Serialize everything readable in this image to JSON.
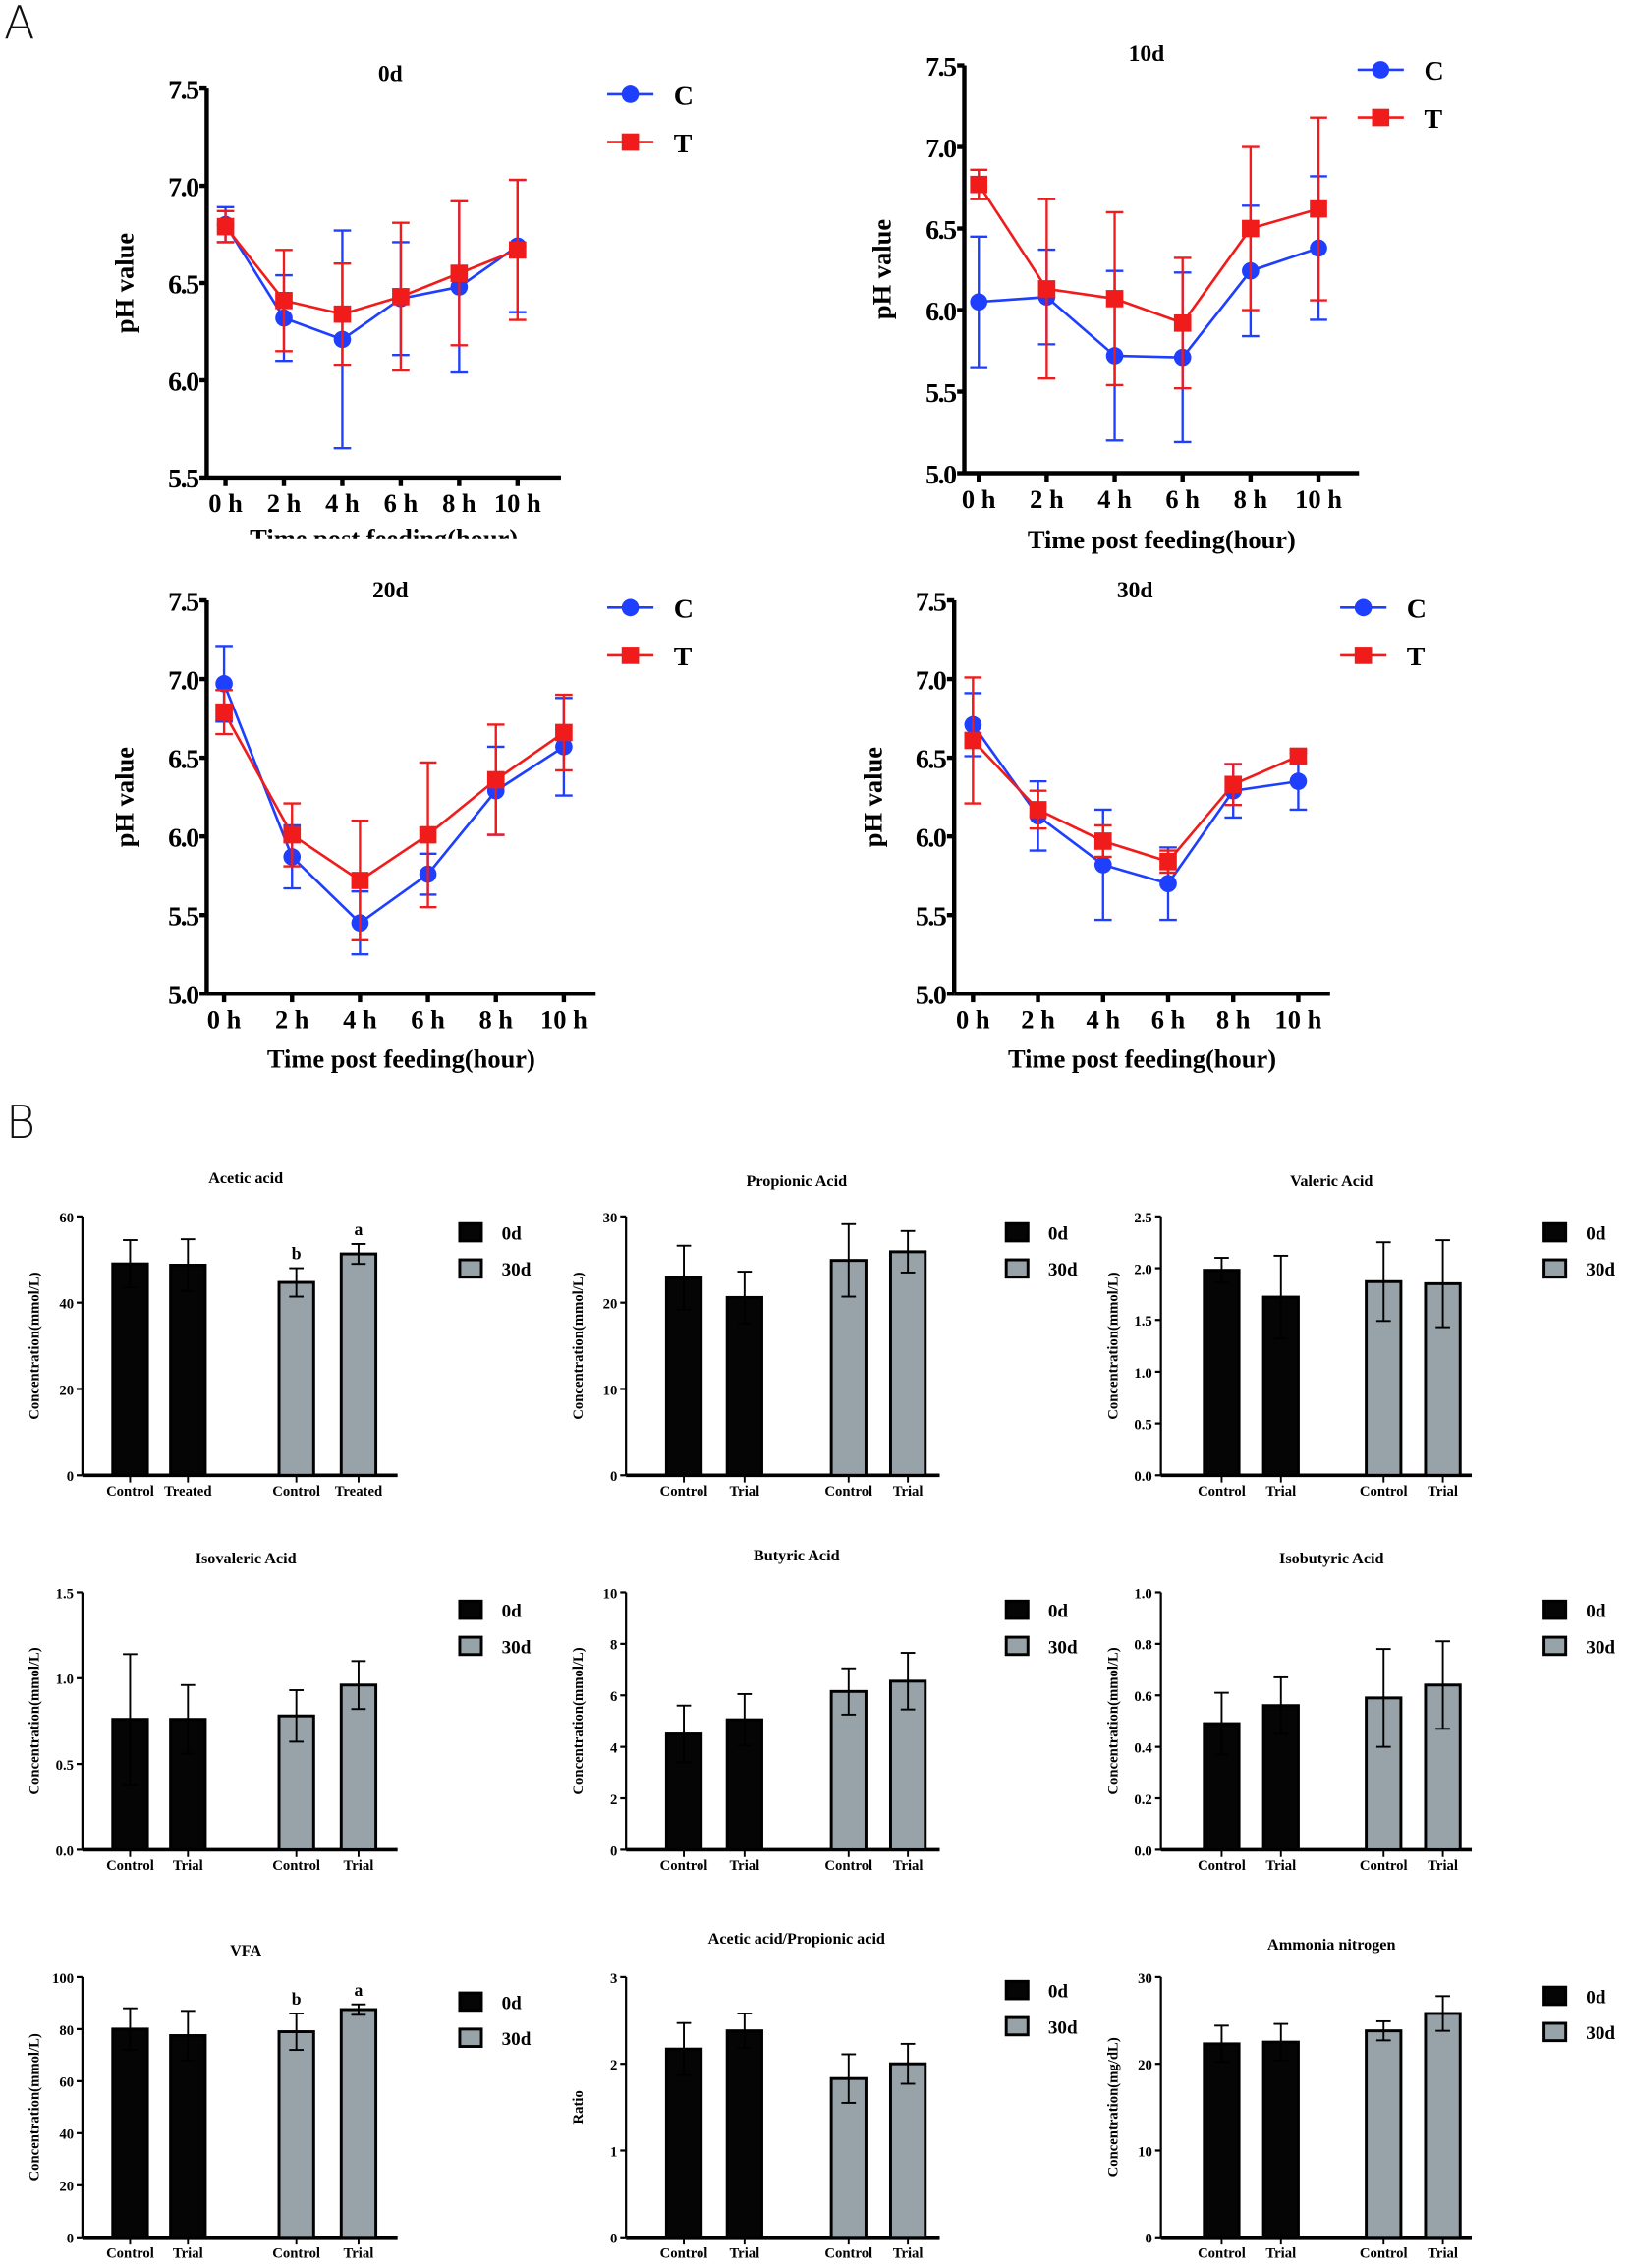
{
  "panel_labels": {
    "a": "A",
    "b": "B"
  },
  "chart_data": [
    {
      "type": "line",
      "title": "0d",
      "xlabel": "Time post feeding(hour)",
      "ylabel": "pH value",
      "ylim": [
        5.5,
        7.5
      ],
      "yticks": [
        "5.5",
        "6.0",
        "6.5",
        "7.0",
        "7.5"
      ],
      "categories": [
        "0 h",
        "2 h",
        "4 h",
        "6 h",
        "8 h",
        "10 h"
      ],
      "legend": "top-right",
      "series": [
        {
          "name": "C",
          "color": "#1f3fff",
          "marker": "circle",
          "values": [
            6.8,
            6.32,
            6.21,
            6.42,
            6.48,
            6.69
          ],
          "errors": [
            0.09,
            0.22,
            0.56,
            0.29,
            0.44,
            0.34
          ]
        },
        {
          "name": "T",
          "color": "#f01c1c",
          "marker": "square",
          "values": [
            6.79,
            6.41,
            6.34,
            6.43,
            6.55,
            6.67
          ],
          "errors": [
            0.08,
            0.26,
            0.26,
            0.38,
            0.37,
            0.36
          ]
        }
      ]
    },
    {
      "type": "line",
      "title": "10d",
      "xlabel": "Time post feeding(hour)",
      "ylabel": "pH value",
      "ylim": [
        5.0,
        7.5
      ],
      "yticks": [
        "5.0",
        "5.5",
        "6.0",
        "6.5",
        "7.0",
        "7.5"
      ],
      "categories": [
        "0 h",
        "2 h",
        "4 h",
        "6 h",
        "8 h",
        "10 h"
      ],
      "legend": "top-right",
      "series": [
        {
          "name": "C",
          "color": "#1f3fff",
          "marker": "circle",
          "values": [
            6.05,
            6.08,
            5.72,
            5.71,
            6.24,
            6.38
          ],
          "errors": [
            0.4,
            0.29,
            0.52,
            0.52,
            0.4,
            0.44
          ]
        },
        {
          "name": "T",
          "color": "#f01c1c",
          "marker": "square",
          "values": [
            6.77,
            6.13,
            6.07,
            5.92,
            6.5,
            6.62
          ],
          "errors": [
            0.09,
            0.55,
            0.53,
            0.4,
            0.5,
            0.56
          ]
        }
      ]
    },
    {
      "type": "line",
      "title": "20d",
      "xlabel": "Time post feeding(hour)",
      "ylabel": "pH value",
      "ylim": [
        5.0,
        7.5
      ],
      "yticks": [
        "5.0",
        "5.5",
        "6.0",
        "6.5",
        "7.0",
        "7.5"
      ],
      "categories": [
        "0 h",
        "2 h",
        "4 h",
        "6 h",
        "8 h",
        "10 h"
      ],
      "legend": "top-right",
      "series": [
        {
          "name": "C",
          "color": "#1f3fff",
          "marker": "circle",
          "values": [
            6.97,
            5.87,
            5.45,
            5.76,
            6.29,
            6.57
          ],
          "errors": [
            0.24,
            0.2,
            0.2,
            0.13,
            0.28,
            0.31
          ]
        },
        {
          "name": "T",
          "color": "#f01c1c",
          "marker": "square",
          "values": [
            6.79,
            6.01,
            5.72,
            6.01,
            6.36,
            6.66
          ],
          "errors": [
            0.14,
            0.2,
            0.38,
            0.46,
            0.35,
            0.24
          ]
        }
      ]
    },
    {
      "type": "line",
      "title": "30d",
      "xlabel": "Time post feeding(hour)",
      "ylabel": "pH value",
      "ylim": [
        5.0,
        7.5
      ],
      "yticks": [
        "5.0",
        "5.5",
        "6.0",
        "6.5",
        "7.0",
        "7.5"
      ],
      "categories": [
        "0 h",
        "2 h",
        "4 h",
        "6 h",
        "8 h",
        "10 h"
      ],
      "legend": "top-right",
      "series": [
        {
          "name": "C",
          "color": "#1f3fff",
          "marker": "circle",
          "values": [
            6.71,
            6.13,
            5.82,
            5.7,
            6.29,
            6.35
          ],
          "errors": [
            0.2,
            0.22,
            0.35,
            0.23,
            0.17,
            0.18
          ]
        },
        {
          "name": "T",
          "color": "#f01c1c",
          "marker": "square",
          "values": [
            6.61,
            6.17,
            5.97,
            5.84,
            6.33,
            6.51
          ],
          "errors": [
            0.4,
            0.12,
            0.1,
            0.07,
            0.13,
            0.04
          ]
        }
      ]
    },
    {
      "type": "bar",
      "title": "Acetic acid",
      "ylabel": "Concentration(mmol/L)",
      "ylim": [
        0,
        60
      ],
      "yticks": [
        "0",
        "20",
        "40",
        "60"
      ],
      "categories": [
        "Control",
        "Treated",
        "Control",
        "Treated"
      ],
      "groups": [
        "0d",
        "0d",
        "30d",
        "30d"
      ],
      "values": [
        49.0,
        48.7,
        44.7,
        51.3
      ],
      "errors": [
        5.5,
        6.0,
        3.3,
        2.3
      ],
      "letters": [
        "",
        "",
        "b",
        "a"
      ],
      "legend": [
        "0d",
        "30d"
      ]
    },
    {
      "type": "bar",
      "title": "Propionic Acid",
      "ylabel": "Concentration(mmol/L)",
      "ylim": [
        0,
        30
      ],
      "yticks": [
        "0",
        "10",
        "20",
        "30"
      ],
      "categories": [
        "Control",
        "Trial",
        "Control",
        "Trial"
      ],
      "groups": [
        "0d",
        "0d",
        "30d",
        "30d"
      ],
      "values": [
        22.9,
        20.6,
        24.9,
        25.9
      ],
      "errors": [
        3.7,
        3.0,
        4.2,
        2.4
      ],
      "letters": [
        "",
        "",
        "",
        ""
      ],
      "legend": [
        "0d",
        "30d"
      ]
    },
    {
      "type": "bar",
      "title": "Valeric Acid",
      "ylabel": "Concentration(mmol/L)",
      "ylim": [
        0,
        2.5
      ],
      "yticks": [
        "0.0",
        "0.5",
        "1.0",
        "1.5",
        "2.0",
        "2.5"
      ],
      "categories": [
        "Control",
        "Trial",
        "Control",
        "Trial"
      ],
      "groups": [
        "0d",
        "0d",
        "30d",
        "30d"
      ],
      "values": [
        1.98,
        1.72,
        1.87,
        1.85
      ],
      "errors": [
        0.12,
        0.4,
        0.38,
        0.42
      ],
      "letters": [
        "",
        "",
        "",
        ""
      ],
      "legend": [
        "0d",
        "30d"
      ]
    },
    {
      "type": "bar",
      "title": "Isovaleric Acid",
      "ylabel": "Concentration(mmol/L)",
      "ylim": [
        0,
        1.5
      ],
      "yticks": [
        "0.0",
        "0.5",
        "1.0",
        "1.5"
      ],
      "categories": [
        "Control",
        "Trial",
        "Control",
        "Trial"
      ],
      "groups": [
        "0d",
        "0d",
        "30d",
        "30d"
      ],
      "values": [
        0.76,
        0.76,
        0.78,
        0.96
      ],
      "errors": [
        0.38,
        0.2,
        0.15,
        0.14
      ],
      "letters": [
        "",
        "",
        "",
        ""
      ],
      "legend": [
        "0d",
        "30d"
      ]
    },
    {
      "type": "bar",
      "title": "Butyric Acid",
      "ylabel": "Concentration(mmol/L)",
      "ylim": [
        0,
        10
      ],
      "yticks": [
        "0",
        "2",
        "4",
        "6",
        "8",
        "10"
      ],
      "categories": [
        "Control",
        "Trial",
        "Control",
        "Trial"
      ],
      "groups": [
        "0d",
        "0d",
        "30d",
        "30d"
      ],
      "values": [
        4.5,
        5.05,
        6.15,
        6.55
      ],
      "errors": [
        1.1,
        1.0,
        0.9,
        1.1
      ],
      "letters": [
        "",
        "",
        "",
        ""
      ],
      "legend": [
        "0d",
        "30d"
      ]
    },
    {
      "type": "bar",
      "title": "Isobutyric Acid",
      "ylabel": "Concentration(mmol/L)",
      "ylim": [
        0,
        1.0
      ],
      "yticks": [
        "0.0",
        "0.2",
        "0.4",
        "0.6",
        "0.8",
        "1.0"
      ],
      "categories": [
        "Control",
        "Trial",
        "Control",
        "Trial"
      ],
      "groups": [
        "0d",
        "0d",
        "30d",
        "30d"
      ],
      "values": [
        0.49,
        0.56,
        0.59,
        0.64
      ],
      "errors": [
        0.12,
        0.11,
        0.19,
        0.17
      ],
      "letters": [
        "",
        "",
        "",
        ""
      ],
      "legend": [
        "0d",
        "30d"
      ]
    },
    {
      "type": "bar",
      "title": "VFA",
      "ylabel": "Concentration(mmol/L)",
      "ylim": [
        0,
        100
      ],
      "yticks": [
        "0",
        "20",
        "40",
        "60",
        "80",
        "100"
      ],
      "categories": [
        "Control",
        "Trial",
        "Control",
        "Trial"
      ],
      "groups": [
        "0d",
        "0d",
        "30d",
        "30d"
      ],
      "values": [
        80.0,
        77.5,
        79.0,
        87.5
      ],
      "errors": [
        8.0,
        9.5,
        7.0,
        2.0
      ],
      "letters": [
        "",
        "",
        "b",
        "a"
      ],
      "legend": [
        "0d",
        "30d"
      ]
    },
    {
      "type": "bar",
      "title": "Acetic acid/Propionic acid",
      "ylabel": "Ratio",
      "ylim": [
        0,
        3
      ],
      "yticks": [
        "0",
        "1",
        "2",
        "3"
      ],
      "categories": [
        "Control",
        "Trial",
        "Control",
        "Trial"
      ],
      "groups": [
        "0d",
        "0d",
        "30d",
        "30d"
      ],
      "values": [
        2.17,
        2.38,
        1.83,
        2.0
      ],
      "errors": [
        0.3,
        0.2,
        0.28,
        0.23
      ],
      "letters": [
        "",
        "",
        "",
        ""
      ],
      "legend": [
        "0d",
        "30d"
      ]
    },
    {
      "type": "bar",
      "title": "Ammonia nitrogen",
      "ylabel": "Concentration(mg/dL)",
      "ylim": [
        0,
        30
      ],
      "yticks": [
        "0",
        "10",
        "20",
        "30"
      ],
      "categories": [
        "Control",
        "Trial",
        "Control",
        "Trial"
      ],
      "groups": [
        "0d",
        "0d",
        "30d",
        "30d"
      ],
      "values": [
        22.3,
        22.5,
        23.8,
        25.8
      ],
      "errors": [
        2.1,
        2.1,
        1.1,
        2.0
      ],
      "letters": [
        "",
        "",
        "",
        ""
      ],
      "legend": [
        "0d",
        "30d"
      ]
    }
  ],
  "colors": {
    "c": "#1f3fff",
    "t": "#f01c1c",
    "bar_0d": "#050505",
    "bar_30d": "#97a3a8"
  }
}
